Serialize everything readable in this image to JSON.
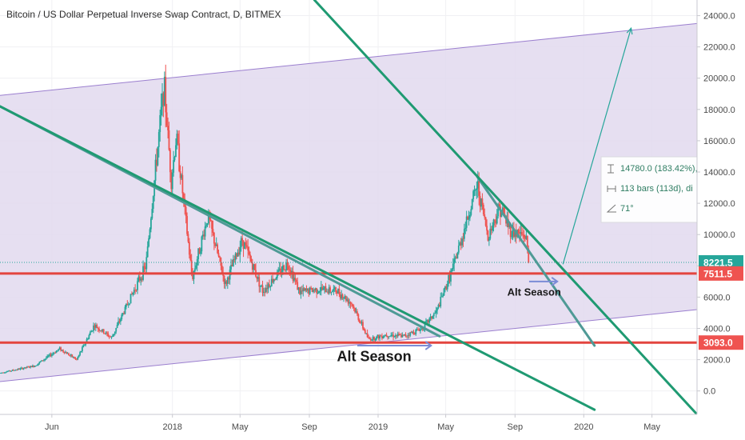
{
  "header": {
    "title": "Bitcoin / US Dollar Perpetual Inverse Swap Contract, D, BITMEX"
  },
  "colors": {
    "up": "#26a69a",
    "down": "#ef5350",
    "channel_fill": "#e2d9ee",
    "channel_line": "#9b7fcf",
    "trendline": "#4f9a96",
    "green_line": "#1f9a72",
    "support_line": "#e3453f",
    "arrow": "#7b8cd6",
    "price_tag_green": "#26a69a",
    "price_tag_red": "#ef5350"
  },
  "chart_data": {
    "type": "candlestick",
    "ylim": [
      -1500,
      25000
    ],
    "y_ticks": [
      0,
      2000,
      4000,
      6000,
      8000,
      10000,
      12000,
      14000,
      16000,
      18000,
      20000,
      22000,
      24000
    ],
    "y_tick_labels": [
      "0.0",
      "2000.0",
      "4000.0",
      "6000.0",
      "8000.0",
      "10000.0",
      "12000.0",
      "14000.0",
      "16000.0",
      "18000.0",
      "20000.0",
      "22000.0",
      "24000.0"
    ],
    "x_range": [
      "2017-03-01",
      "2020-07-20"
    ],
    "x_ticks": [
      {
        "date": "2017-06-01",
        "label": "Jun"
      },
      {
        "date": "2018-01-01",
        "label": "2018"
      },
      {
        "date": "2018-05-01",
        "label": "May"
      },
      {
        "date": "2018-09-01",
        "label": "Sep"
      },
      {
        "date": "2019-01-01",
        "label": "2019"
      },
      {
        "date": "2019-05-01",
        "label": "May"
      },
      {
        "date": "2019-09-01",
        "label": "Sep"
      },
      {
        "date": "2020-01-01",
        "label": "2020"
      },
      {
        "date": "2020-05-01",
        "label": "May"
      }
    ],
    "price_path": [
      {
        "date": "2017-03-01",
        "price": 1150
      },
      {
        "date": "2017-05-01",
        "price": 1600
      },
      {
        "date": "2017-06-15",
        "price": 2700
      },
      {
        "date": "2017-07-15",
        "price": 2000
      },
      {
        "date": "2017-08-15",
        "price": 4200
      },
      {
        "date": "2017-09-15",
        "price": 3400
      },
      {
        "date": "2017-10-15",
        "price": 5700
      },
      {
        "date": "2017-11-15",
        "price": 8000
      },
      {
        "date": "2017-12-17",
        "price": 19600
      },
      {
        "date": "2017-12-30",
        "price": 13500
      },
      {
        "date": "2018-01-08",
        "price": 16300
      },
      {
        "date": "2018-02-05",
        "price": 7200
      },
      {
        "date": "2018-03-05",
        "price": 11200
      },
      {
        "date": "2018-04-05",
        "price": 6800
      },
      {
        "date": "2018-05-05",
        "price": 9700
      },
      {
        "date": "2018-06-10",
        "price": 6400
      },
      {
        "date": "2018-07-25",
        "price": 8200
      },
      {
        "date": "2018-08-15",
        "price": 6300
      },
      {
        "date": "2018-09-15",
        "price": 6500
      },
      {
        "date": "2018-10-20",
        "price": 6400
      },
      {
        "date": "2018-11-15",
        "price": 5600
      },
      {
        "date": "2018-12-15",
        "price": 3300
      },
      {
        "date": "2019-01-15",
        "price": 3600
      },
      {
        "date": "2019-02-15",
        "price": 3500
      },
      {
        "date": "2019-03-20",
        "price": 4000
      },
      {
        "date": "2019-04-15",
        "price": 5100
      },
      {
        "date": "2019-05-15",
        "price": 8000
      },
      {
        "date": "2019-06-26",
        "price": 13200
      },
      {
        "date": "2019-07-15",
        "price": 9900
      },
      {
        "date": "2019-08-05",
        "price": 11800
      },
      {
        "date": "2019-08-25",
        "price": 10200
      },
      {
        "date": "2019-09-20",
        "price": 9900
      },
      {
        "date": "2019-09-26",
        "price": 8221.5
      }
    ],
    "channel": {
      "upper": [
        {
          "date": "2017-03-01",
          "price": 18900
        },
        {
          "date": "2020-07-20",
          "price": 23500
        }
      ],
      "lower": [
        {
          "date": "2017-03-01",
          "price": 600
        },
        {
          "date": "2020-07-20",
          "price": 5200
        }
      ]
    },
    "trendlines": [
      {
        "style": "teal",
        "from": {
          "date": "2017-03-01",
          "price": 18200
        },
        "to": {
          "date": "2019-04-20",
          "price": 3500
        }
      },
      {
        "style": "teal",
        "from": {
          "date": "2019-06-26",
          "price": 13700
        },
        "to": {
          "date": "2020-01-20",
          "price": 2900
        }
      },
      {
        "style": "green",
        "from": {
          "date": "2017-03-01",
          "price": 18200
        },
        "to": {
          "date": "2020-01-20",
          "price": -1200
        }
      },
      {
        "style": "green",
        "from": {
          "date": "2018-09-10",
          "price": 25000
        },
        "to": {
          "date": "2020-07-20",
          "price": -1500
        }
      }
    ],
    "horizontal_levels": [
      {
        "price": 7511.5,
        "label": "7511.5",
        "style": "support"
      },
      {
        "price": 3093.0,
        "label": "3093.0",
        "style": "support"
      }
    ],
    "last_price": {
      "price": 8221.5,
      "label": "8221.5"
    },
    "projection": {
      "from": {
        "date": "2019-11-25",
        "price": 8100
      },
      "to": {
        "date": "2020-03-25",
        "price": 23200
      }
    },
    "annotations": [
      {
        "text": "Alt Season",
        "size": "large",
        "anchor": {
          "date": "2018-12-25",
          "price": 1900
        },
        "arrow": {
          "from": {
            "date": "2018-11-25",
            "price": 2900
          },
          "to": {
            "date": "2019-04-05",
            "price": 2900
          }
        }
      },
      {
        "text": "Alt Season",
        "size": "small",
        "anchor": {
          "date": "2019-10-05",
          "price": 6100
        },
        "arrow": {
          "from": {
            "date": "2019-09-26",
            "price": 7000
          },
          "to": {
            "date": "2019-11-15",
            "price": 7000
          }
        }
      }
    ],
    "measurement": {
      "lines": [
        "14780.0 (183.42%),",
        "113 bars (113d), di",
        "71°"
      ]
    }
  }
}
